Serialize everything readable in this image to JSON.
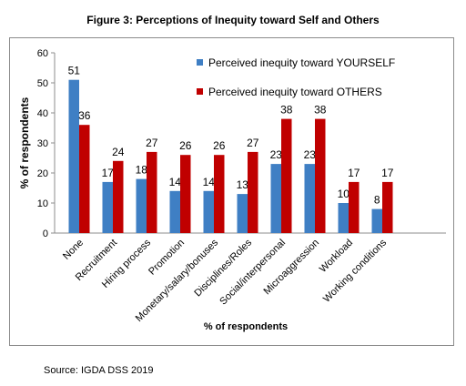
{
  "figure_title": "Figure 3: Perceptions of Inequity toward Self and Others",
  "source": "Source: IGDA DSS 2019",
  "colors": {
    "yourself": "#3f7fc4",
    "others": "#c00000"
  },
  "chart_data": {
    "type": "bar",
    "categories": [
      "None",
      "Recruitment",
      "Hiring process",
      "Promotion",
      "Monetary/salary/bonuses",
      "Disciplines/Roles",
      "Social/interpersonal",
      "Microaggression",
      "Workload",
      "Working conditions"
    ],
    "series": [
      {
        "name": "Perceived inequity toward YOURSELF",
        "values": [
          51,
          17,
          18,
          14,
          14,
          13,
          23,
          23,
          10,
          8
        ]
      },
      {
        "name": "Perceived inequity toward OTHERS",
        "values": [
          36,
          24,
          27,
          26,
          26,
          27,
          38,
          38,
          17,
          17
        ]
      }
    ],
    "ylabel": "% of respondents",
    "xlabel": "% of respondents",
    "ylim": [
      0,
      60
    ],
    "yticks": [
      0,
      10,
      20,
      30,
      40,
      50,
      60
    ],
    "legend": "top-right",
    "grid": false
  }
}
